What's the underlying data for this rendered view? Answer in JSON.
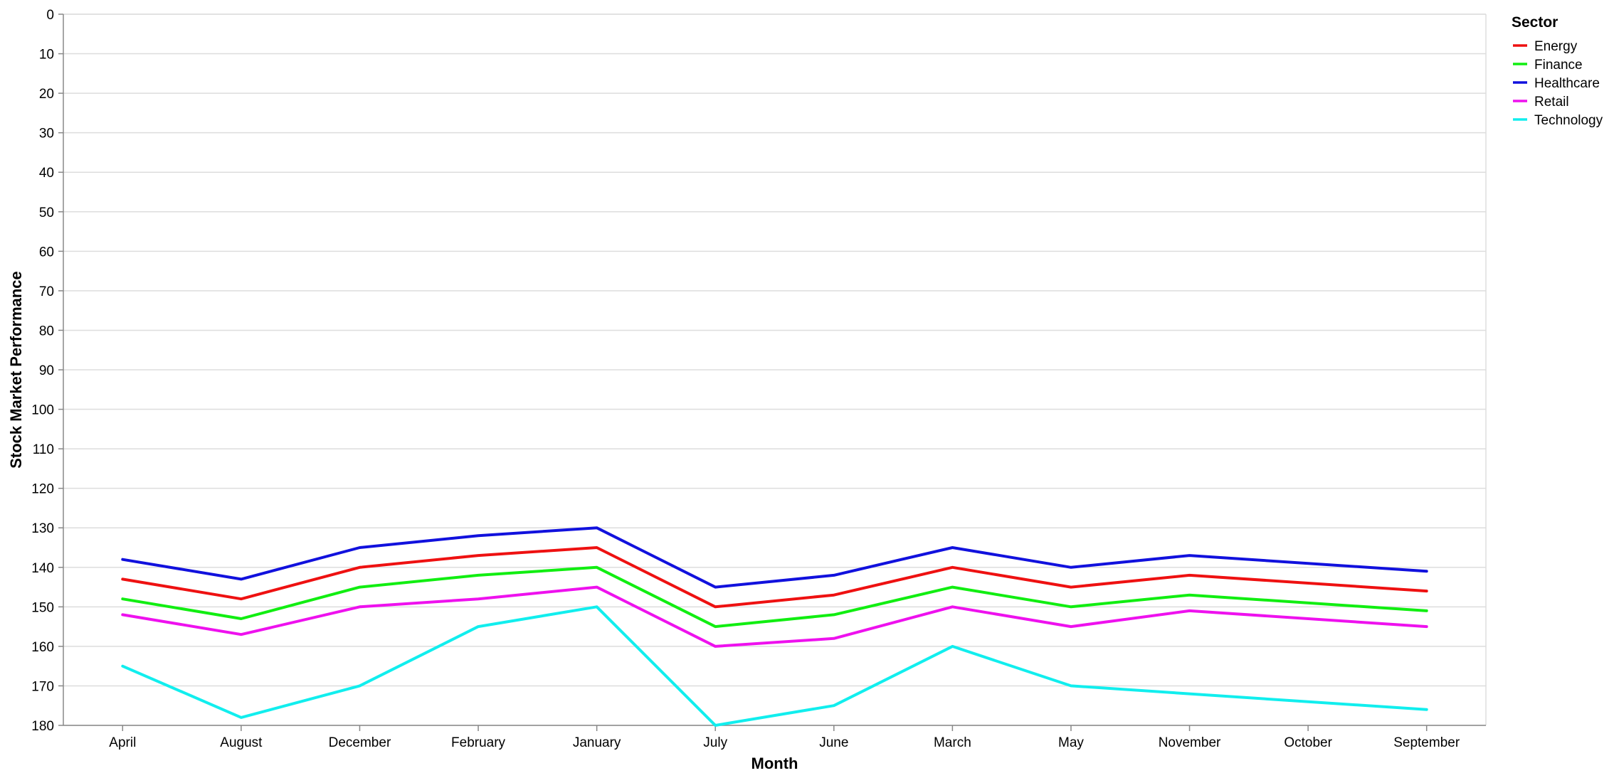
{
  "chart_data": {
    "type": "line",
    "xlabel": "Month",
    "ylabel": "Stock Market Performance",
    "ylim": [
      0,
      180
    ],
    "y_reversed": true,
    "y_ticks": [
      0,
      10,
      20,
      30,
      40,
      50,
      60,
      70,
      80,
      90,
      100,
      110,
      120,
      130,
      140,
      150,
      160,
      170,
      180
    ],
    "grid": true,
    "categories": [
      "April",
      "August",
      "December",
      "February",
      "January",
      "July",
      "June",
      "March",
      "May",
      "November",
      "October",
      "September"
    ],
    "legend": {
      "title": "Sector",
      "position": "top-right"
    },
    "series": [
      {
        "name": "Energy",
        "color": "#ee1111",
        "values": [
          143,
          148,
          140,
          137,
          135,
          150,
          147,
          140,
          145,
          142,
          null,
          146
        ]
      },
      {
        "name": "Finance",
        "color": "#11ee11",
        "values": [
          148,
          153,
          145,
          142,
          140,
          155,
          152,
          145,
          150,
          147,
          null,
          151
        ]
      },
      {
        "name": "Healthcare",
        "color": "#1111dd",
        "values": [
          138,
          143,
          135,
          132,
          130,
          145,
          142,
          135,
          140,
          137,
          null,
          141
        ]
      },
      {
        "name": "Retail",
        "color": "#ee11ee",
        "values": [
          152,
          157,
          150,
          148,
          145,
          160,
          158,
          150,
          155,
          151,
          null,
          155
        ]
      },
      {
        "name": "Technology",
        "color": "#11eeee",
        "values": [
          165,
          178,
          170,
          155,
          150,
          180,
          175,
          160,
          170,
          172,
          null,
          176
        ]
      }
    ]
  }
}
